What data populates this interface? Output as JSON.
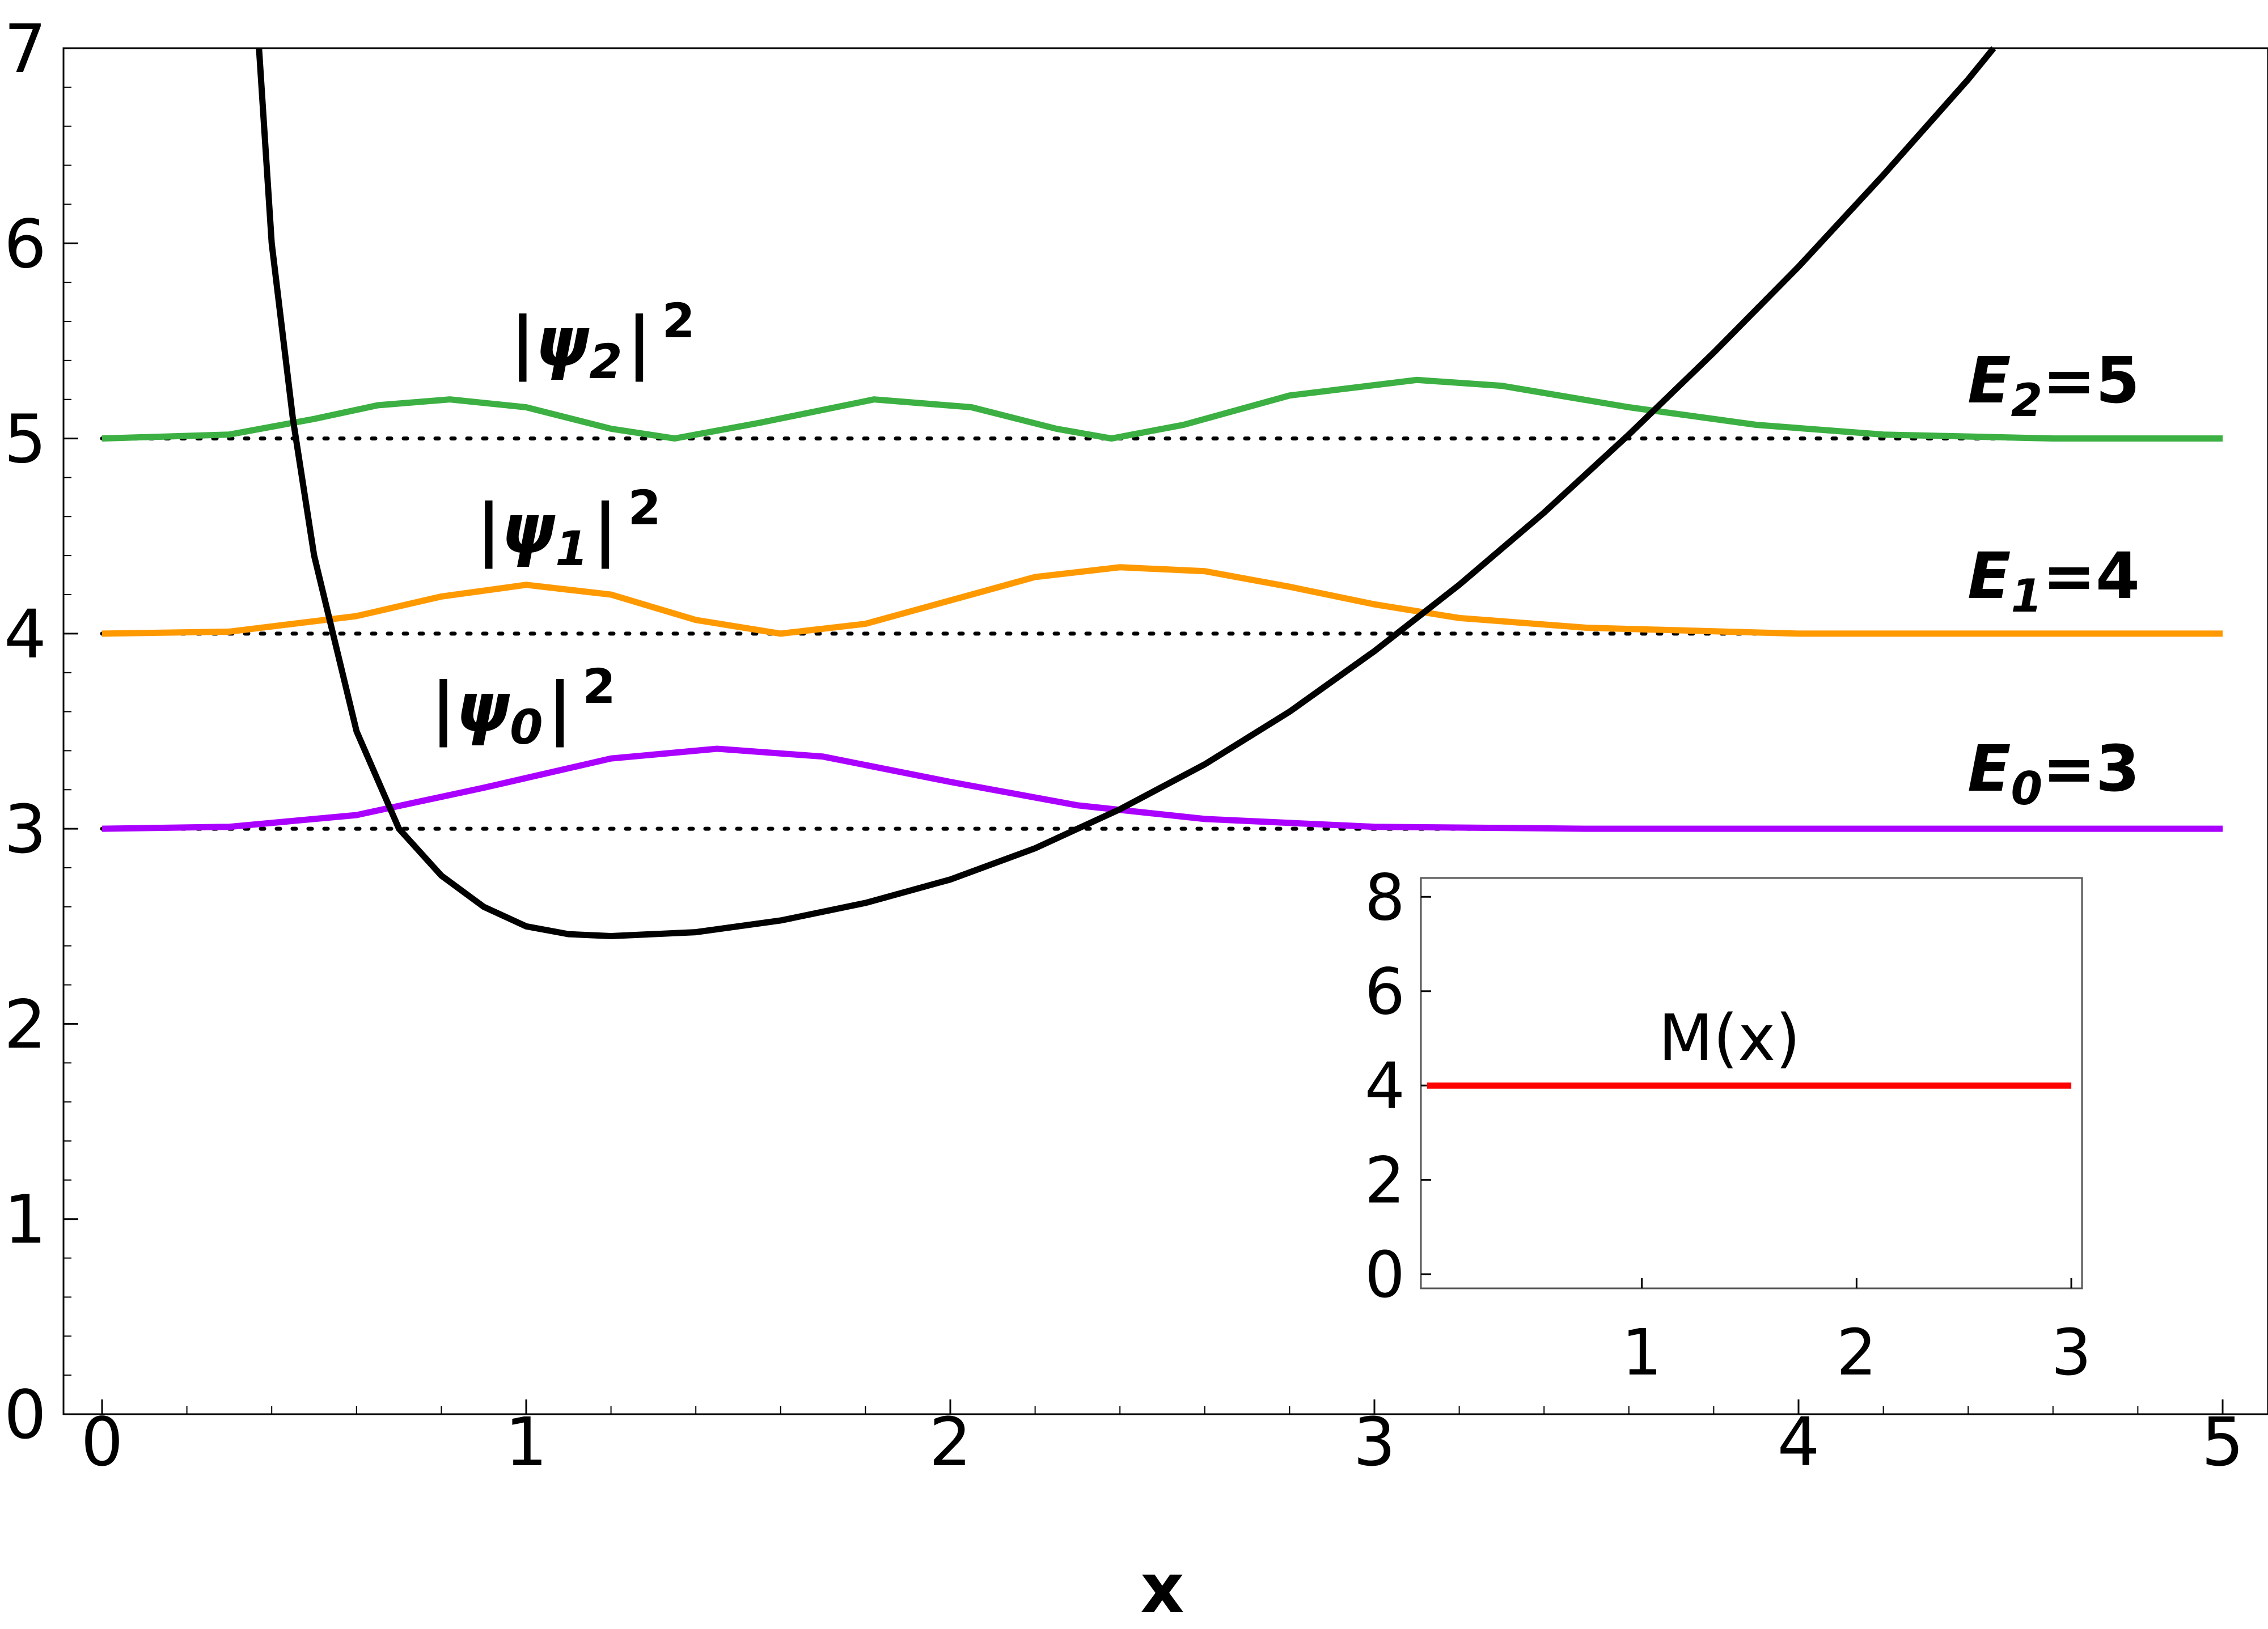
{
  "chart_data": {
    "main": {
      "type": "line",
      "title": "",
      "xlabel": "x",
      "ylabel": "",
      "xlim": [
        0,
        5
      ],
      "ylim": [
        0,
        7
      ],
      "x_ticks": [
        "0",
        "1",
        "2",
        "3",
        "4",
        "5"
      ],
      "y_ticks": [
        "0",
        "1",
        "2",
        "3",
        "4",
        "5",
        "6",
        "7"
      ],
      "grid": false,
      "potential": {
        "color": "#000000",
        "points": [
          [
            0.37,
            7.0
          ],
          [
            0.4,
            6.0
          ],
          [
            0.45,
            5.1
          ],
          [
            0.5,
            4.4
          ],
          [
            0.6,
            3.5
          ],
          [
            0.7,
            3.0
          ],
          [
            0.8,
            2.76
          ],
          [
            0.9,
            2.6
          ],
          [
            1.0,
            2.5
          ],
          [
            1.1,
            2.46
          ],
          [
            1.2,
            2.45
          ],
          [
            1.4,
            2.47
          ],
          [
            1.6,
            2.53
          ],
          [
            1.8,
            2.62
          ],
          [
            2.0,
            2.74
          ],
          [
            2.2,
            2.9
          ],
          [
            2.4,
            3.1
          ],
          [
            2.6,
            3.33
          ],
          [
            2.8,
            3.6
          ],
          [
            3.0,
            3.91
          ],
          [
            3.2,
            4.25
          ],
          [
            3.4,
            4.62
          ],
          [
            3.6,
            5.02
          ],
          [
            3.8,
            5.44
          ],
          [
            4.0,
            5.88
          ],
          [
            4.2,
            6.35
          ],
          [
            4.4,
            6.84
          ],
          [
            4.46,
            7.0
          ]
        ]
      },
      "levels": [
        {
          "name": "E0",
          "energy": 3,
          "color": "#aa00ff",
          "label_prefix": "E",
          "label_sub": "0",
          "label_value": "=3",
          "psi_prefix": "|ψ",
          "psi_sub": "0",
          "psi_suffix": "|",
          "psi_sup": "2",
          "points": [
            [
              0.0,
              3.0
            ],
            [
              0.3,
              3.01
            ],
            [
              0.6,
              3.07
            ],
            [
              0.9,
              3.21
            ],
            [
              1.2,
              3.36
            ],
            [
              1.45,
              3.41
            ],
            [
              1.7,
              3.37
            ],
            [
              2.0,
              3.24
            ],
            [
              2.3,
              3.12
            ],
            [
              2.6,
              3.05
            ],
            [
              3.0,
              3.01
            ],
            [
              3.5,
              3.0
            ],
            [
              5.0,
              3.0
            ]
          ]
        },
        {
          "name": "E1",
          "energy": 4,
          "color": "#ff9900",
          "label_prefix": "E",
          "label_sub": "1",
          "label_value": "=4",
          "psi_prefix": "|ψ",
          "psi_sub": "1",
          "psi_suffix": "|",
          "psi_sup": "2",
          "points": [
            [
              0.0,
              4.0
            ],
            [
              0.3,
              4.01
            ],
            [
              0.6,
              4.09
            ],
            [
              0.8,
              4.19
            ],
            [
              1.0,
              4.25
            ],
            [
              1.2,
              4.2
            ],
            [
              1.4,
              4.07
            ],
            [
              1.6,
              4.0
            ],
            [
              1.8,
              4.05
            ],
            [
              2.0,
              4.17
            ],
            [
              2.2,
              4.29
            ],
            [
              2.4,
              4.34
            ],
            [
              2.6,
              4.32
            ],
            [
              2.8,
              4.24
            ],
            [
              3.0,
              4.15
            ],
            [
              3.2,
              4.08
            ],
            [
              3.5,
              4.03
            ],
            [
              4.0,
              4.0
            ],
            [
              5.0,
              4.0
            ]
          ]
        },
        {
          "name": "E2",
          "energy": 5,
          "color": "#3cb043",
          "label_prefix": "E",
          "label_sub": "2",
          "label_value": "=5",
          "psi_prefix": "|ψ",
          "psi_sub": "2",
          "psi_suffix": "|",
          "psi_sup": "2",
          "points": [
            [
              0.0,
              5.0
            ],
            [
              0.3,
              5.02
            ],
            [
              0.5,
              5.1
            ],
            [
              0.65,
              5.17
            ],
            [
              0.82,
              5.2
            ],
            [
              1.0,
              5.16
            ],
            [
              1.2,
              5.05
            ],
            [
              1.35,
              5.0
            ],
            [
              1.55,
              5.08
            ],
            [
              1.82,
              5.2
            ],
            [
              2.05,
              5.16
            ],
            [
              2.25,
              5.05
            ],
            [
              2.38,
              5.0
            ],
            [
              2.55,
              5.07
            ],
            [
              2.8,
              5.22
            ],
            [
              3.1,
              5.3
            ],
            [
              3.3,
              5.27
            ],
            [
              3.6,
              5.16
            ],
            [
              3.9,
              5.07
            ],
            [
              4.2,
              5.02
            ],
            [
              4.6,
              5.0
            ],
            [
              5.0,
              5.0
            ]
          ]
        }
      ]
    },
    "inset": {
      "type": "line",
      "label": "M(x)",
      "color": "#ff0000",
      "xlim": [
        0,
        3.05
      ],
      "ylim": [
        -0.3,
        8.4
      ],
      "x_ticks": [
        "1",
        "2",
        "3"
      ],
      "y_ticks": [
        "0",
        "2",
        "4",
        "6",
        "8"
      ],
      "series": [
        {
          "points": [
            [
              0.0,
              4.0
            ],
            [
              3.0,
              4.0
            ]
          ]
        }
      ]
    }
  }
}
